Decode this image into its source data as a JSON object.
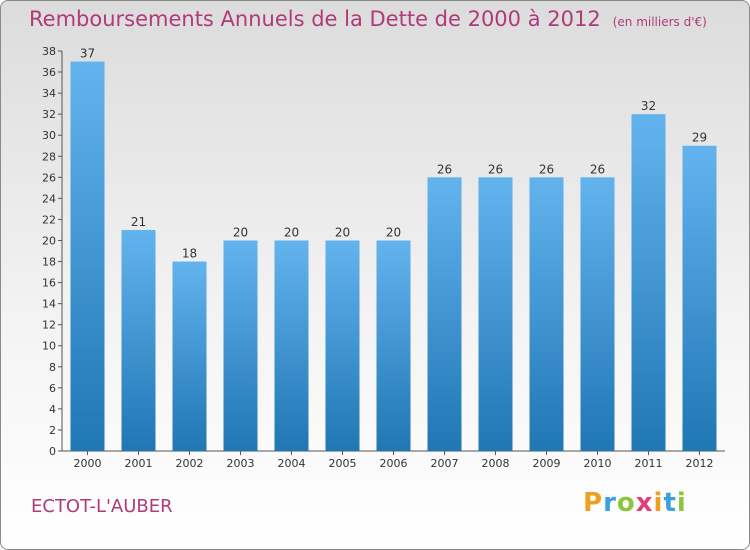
{
  "title": "Remboursements Annuels de la Dette de 2000 à 2012",
  "subtitle": "(en milliers d'€)",
  "commune": "ECTOT-L'AUBER",
  "logo": {
    "letters": [
      "P",
      "r",
      "o",
      "x",
      "i",
      "t",
      "i"
    ],
    "colors": [
      "#f0a020",
      "#3aa0e0",
      "#8cc63f",
      "#e0407a",
      "#f0a020",
      "#3aa0e0",
      "#8cc63f"
    ]
  },
  "colors": {
    "bar_dark": "#1f77b4",
    "bar_light": "#63b3ee",
    "text": "#b03a7a",
    "axis_text": "#333333"
  },
  "chart_data": {
    "type": "bar",
    "categories": [
      "2000",
      "2001",
      "2002",
      "2003",
      "2004",
      "2005",
      "2006",
      "2007",
      "2008",
      "2009",
      "2010",
      "2011",
      "2012"
    ],
    "values": [
      37,
      21,
      18,
      20,
      20,
      20,
      20,
      26,
      26,
      26,
      26,
      32,
      29
    ],
    "title": "Remboursements Annuels de la Dette de 2000 à 2012",
    "ylim": [
      0,
      38
    ],
    "yticks": [
      0,
      2,
      4,
      6,
      8,
      10,
      12,
      14,
      16,
      18,
      20,
      22,
      24,
      26,
      28,
      30,
      32,
      34,
      36,
      38
    ],
    "grid": false,
    "data_labels": true
  }
}
